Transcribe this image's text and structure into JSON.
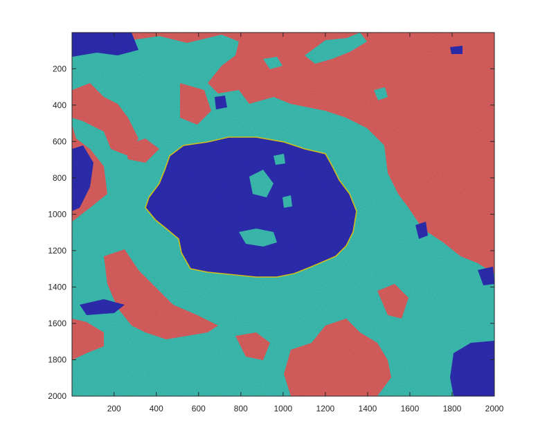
{
  "figure": {
    "colors": {
      "background": "#ffffff",
      "red_region": "#e26464",
      "cyan_region": "#3fc4b8",
      "blue_region": "#3333b8",
      "boundary_line": "#e8d21a",
      "axis": "#262626"
    },
    "xaxis": {
      "range": [
        1,
        2000
      ],
      "ticks": [
        200,
        400,
        600,
        800,
        1000,
        1200,
        1400,
        1600,
        1800,
        2000
      ],
      "tick_labels": [
        "200",
        "400",
        "600",
        "800",
        "1000",
        "1200",
        "1400",
        "1600",
        "1800",
        "2000"
      ]
    },
    "yaxis": {
      "range": [
        1,
        2000
      ],
      "direction": "reversed",
      "ticks": [
        200,
        400,
        600,
        800,
        1000,
        1200,
        1400,
        1600,
        1800,
        2000
      ],
      "tick_labels": [
        "200",
        "400",
        "600",
        "800",
        "1000",
        "1200",
        "1400",
        "1600",
        "1800",
        "2000"
      ]
    }
  }
}
